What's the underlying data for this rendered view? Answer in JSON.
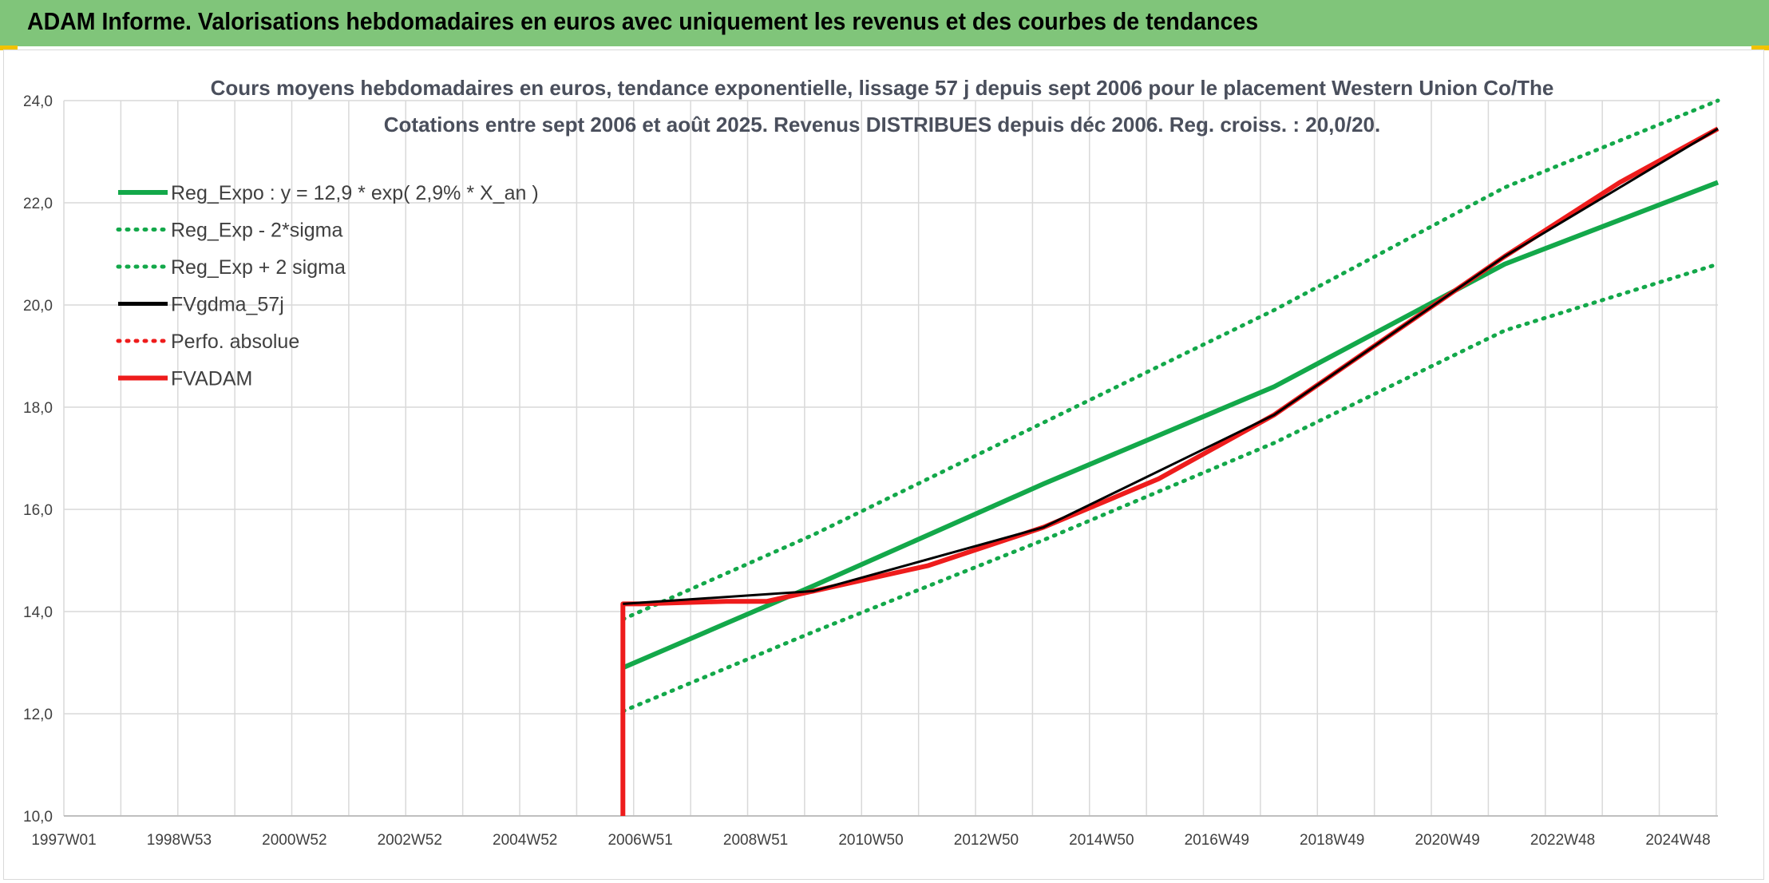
{
  "banner": {
    "title": "ADAM Informe. Valorisations hebdomadaires en euros avec uniquement les revenus et des courbes de tendances"
  },
  "colors": {
    "banner_bg": "#80c57a",
    "green": "#13a84a",
    "red": "#ee1c1c",
    "black": "#000000",
    "grid": "#d9d9d9",
    "accent": "#f2c200"
  },
  "chart_data": {
    "type": "line",
    "title_lines": [
      "Cours moyens hebdomadaires en euros, tendance exponentielle, lissage 57 j depuis sept 2006 pour le placement Western Union Co/The",
      "Cotations entre sept 2006 et août 2025. Revenus DISTRIBUES depuis déc 2006. Reg. croiss. : 20,0/20."
    ],
    "x_tick_labels": [
      "1997W01",
      "1998W53",
      "2000W52",
      "2002W52",
      "2004W52",
      "2006W51",
      "2008W51",
      "2010W50",
      "2012W50",
      "2014W50",
      "2016W49",
      "2018W49",
      "2020W49",
      "2022W48",
      "2024W48"
    ],
    "x_range_years": [
      1997.0,
      2025.7
    ],
    "y_tick_labels": [
      "10,0",
      "12,0",
      "14,0",
      "16,0",
      "18,0",
      "20,0",
      "22,0",
      "24,0"
    ],
    "y_ticks": [
      10,
      12,
      14,
      16,
      18,
      20,
      22,
      24
    ],
    "ylim": [
      10,
      24
    ],
    "grid": true,
    "legend_position": "top-left",
    "series": [
      {
        "name": "Reg_Expo : y = 12,9 * exp( 2,9% *  X_an )",
        "color": "#13a84a",
        "style": "solid",
        "x": [
          2006.7,
          2010,
          2014,
          2018,
          2022,
          2025.7
        ],
        "y": [
          12.9,
          14.5,
          16.5,
          18.4,
          20.8,
          22.4
        ]
      },
      {
        "name": "Reg_Exp - 2*sigma",
        "color": "#13a84a",
        "style": "dotted",
        "x": [
          2006.7,
          2010,
          2014,
          2018,
          2022,
          2025.7
        ],
        "y": [
          12.05,
          13.6,
          15.4,
          17.3,
          19.5,
          20.8
        ]
      },
      {
        "name": "Reg_Exp + 2 sigma",
        "color": "#13a84a",
        "style": "dotted",
        "x": [
          2006.7,
          2010,
          2014,
          2018,
          2022,
          2025.7
        ],
        "y": [
          13.85,
          15.5,
          17.7,
          19.9,
          22.3,
          24.0
        ]
      },
      {
        "name": "FVgdma_57j",
        "color": "#000000",
        "style": "solid",
        "x": [
          2006.7,
          2010,
          2014,
          2018,
          2022,
          2025.7
        ],
        "y": [
          14.15,
          14.4,
          15.65,
          17.85,
          20.95,
          23.45
        ]
      },
      {
        "name": "Perfo. absolue",
        "color": "#ee1c1c",
        "style": "dotted",
        "x": [],
        "y": []
      },
      {
        "name": "FVADAM",
        "color": "#ee1c1c",
        "style": "solid",
        "x": [
          2006.7,
          2006.7,
          2007.0,
          2008.5,
          2009.2,
          2010,
          2012,
          2014,
          2016,
          2018,
          2020,
          2022,
          2024,
          2025.7
        ],
        "y": [
          10.0,
          14.15,
          14.15,
          14.2,
          14.2,
          14.4,
          14.9,
          15.65,
          16.6,
          17.85,
          19.4,
          20.95,
          22.4,
          23.45
        ]
      }
    ]
  }
}
